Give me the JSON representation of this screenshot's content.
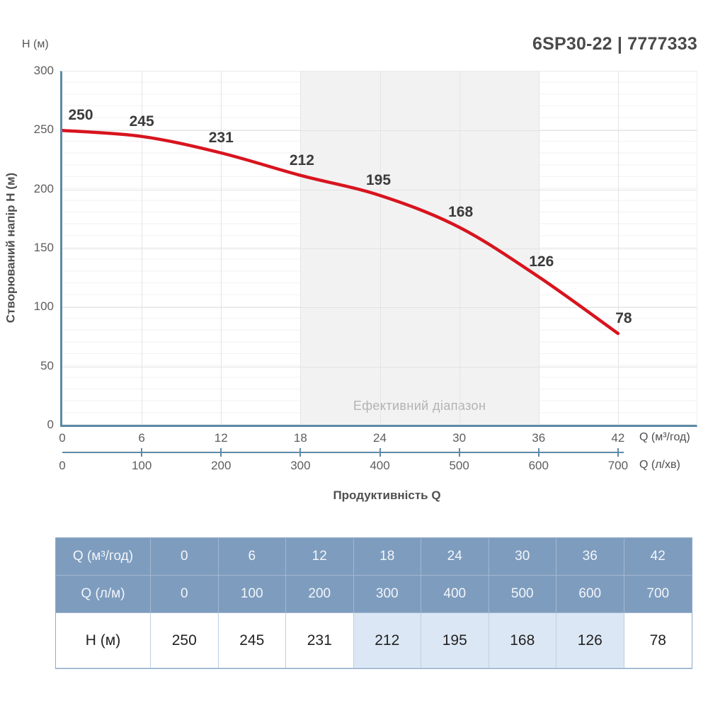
{
  "title": "6SP30-22 | 7777333",
  "chart": {
    "y_axis_unit": "H (м)",
    "y_axis_label": "Створюваний напір H (м)",
    "x_axis_title": "Продуктивність Q",
    "band_label": "Ефективний діапазон",
    "x_unit_primary": "Q (м³/год)",
    "x_unit_secondary": "Q (л/хв)"
  },
  "chart_data": {
    "type": "line",
    "x_m3h": [
      0,
      6,
      12,
      18,
      24,
      30,
      36,
      42
    ],
    "x_lmin": [
      0,
      100,
      200,
      300,
      400,
      500,
      600,
      700
    ],
    "h_values": [
      250,
      245,
      231,
      212,
      195,
      168,
      126,
      78
    ],
    "point_labels": [
      "250",
      "245",
      "231",
      "212",
      "195",
      "168",
      "126",
      "78"
    ],
    "y_ticks": [
      0,
      50,
      100,
      150,
      200,
      250,
      300
    ],
    "ylim": [
      0,
      300
    ],
    "xlim": [
      0,
      48
    ],
    "effective_range_m3h": [
      18,
      36
    ],
    "grid": true,
    "minor_h_grid_step": 10
  },
  "colors": {
    "curve": "#d8141e",
    "axis": "#5d8aa5",
    "band": "#f2f2f2",
    "table_header_bg": "#7e9cbe",
    "table_highlight_bg": "#dbe7f4",
    "point_label_text": "#3b3b3b"
  },
  "table": {
    "rows": [
      {
        "label": "Q (м³/год)",
        "type": "header",
        "values": [
          "0",
          "6",
          "12",
          "18",
          "24",
          "30",
          "36",
          "42"
        ],
        "highlight_cols": []
      },
      {
        "label": "Q (л/м)",
        "type": "header",
        "values": [
          "0",
          "100",
          "200",
          "300",
          "400",
          "500",
          "600",
          "700"
        ],
        "highlight_cols": []
      },
      {
        "label": "H (м)",
        "type": "body",
        "values": [
          "250",
          "245",
          "231",
          "212",
          "195",
          "168",
          "126",
          "78"
        ],
        "highlight_cols": [
          3,
          4,
          5,
          6
        ]
      }
    ]
  }
}
